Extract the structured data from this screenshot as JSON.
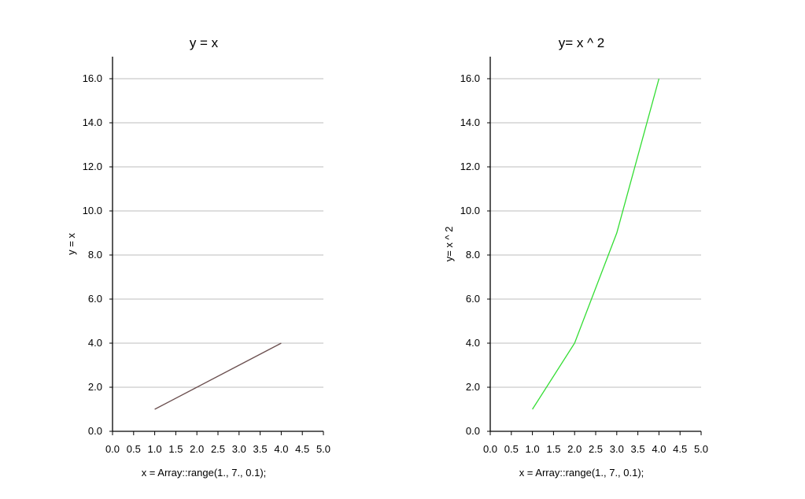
{
  "chart_data": [
    {
      "type": "line",
      "title": "y = x",
      "xlabel": "x = Array::range(1., 7., 0.1);",
      "ylabel": "y = x",
      "xlim": [
        0,
        5
      ],
      "ylim": [
        0,
        17
      ],
      "x_ticks": [
        "0.0",
        "0.5",
        "1.0",
        "1.5",
        "2.0",
        "2.5",
        "3.0",
        "3.5",
        "4.0",
        "4.5",
        "5.0"
      ],
      "y_ticks": [
        "0.0",
        "2.0",
        "4.0",
        "6.0",
        "8.0",
        "10.0",
        "12.0",
        "14.0",
        "16.0"
      ],
      "grid": true,
      "series": [
        {
          "color": "#6b4f4f",
          "x": [
            1,
            2,
            3,
            4
          ],
          "y": [
            1,
            2,
            3,
            4
          ]
        }
      ]
    },
    {
      "type": "line",
      "title": "y= x ^ 2",
      "xlabel": "x = Array::range(1., 7., 0.1);",
      "ylabel": "y= x ^ 2",
      "xlim": [
        0,
        5
      ],
      "ylim": [
        0,
        17
      ],
      "x_ticks": [
        "0.0",
        "0.5",
        "1.0",
        "1.5",
        "2.0",
        "2.5",
        "3.0",
        "3.5",
        "4.0",
        "4.5",
        "5.0"
      ],
      "y_ticks": [
        "0.0",
        "2.0",
        "4.0",
        "6.0",
        "8.0",
        "10.0",
        "12.0",
        "14.0",
        "16.0"
      ],
      "grid": true,
      "series": [
        {
          "color": "#33dd33",
          "x": [
            1,
            2,
            3,
            4
          ],
          "y": [
            1,
            4,
            9,
            16
          ]
        }
      ]
    }
  ]
}
